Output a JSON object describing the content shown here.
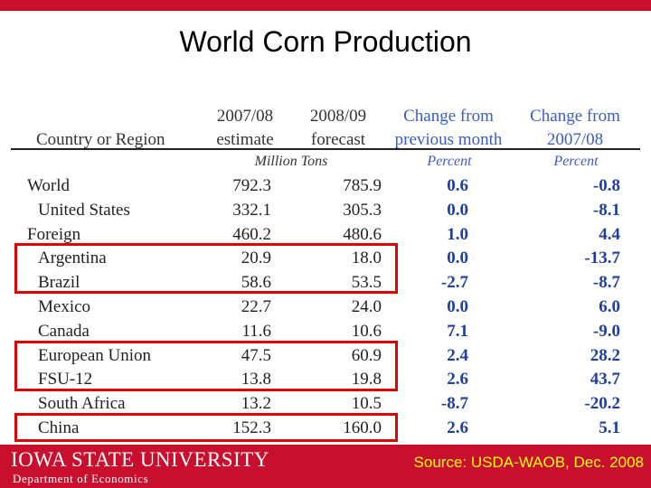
{
  "slide": {
    "title": "World Corn Production"
  },
  "table": {
    "headers": {
      "region": "Country or Region",
      "col1_line1": "2007/08",
      "col1_line2": "estimate",
      "col2_line1": "2008/09",
      "col2_line2": "forecast",
      "col3_line1": "Change from",
      "col3_line2": "previous month",
      "col4_line1": "Change from",
      "col4_line2": "2007/08"
    },
    "units": {
      "tons": "Million Tons",
      "pct1": "Percent",
      "pct2": "Percent"
    },
    "rows": [
      {
        "name": "World",
        "indent": false,
        "est": "792.3",
        "fc": "785.9",
        "chg_month": "0.6",
        "chg_year": "-0.8"
      },
      {
        "name": "United States",
        "indent": true,
        "est": "332.1",
        "fc": "305.3",
        "chg_month": "0.0",
        "chg_year": "-8.1"
      },
      {
        "name": "Foreign",
        "indent": false,
        "est": "460.2",
        "fc": "480.6",
        "chg_month": "1.0",
        "chg_year": "4.4"
      },
      {
        "name": "Argentina",
        "indent": true,
        "est": "20.9",
        "fc": "18.0",
        "chg_month": "0.0",
        "chg_year": "-13.7"
      },
      {
        "name": "Brazil",
        "indent": true,
        "est": "58.6",
        "fc": "53.5",
        "chg_month": "-2.7",
        "chg_year": "-8.7"
      },
      {
        "name": "Mexico",
        "indent": true,
        "est": "22.7",
        "fc": "24.0",
        "chg_month": "0.0",
        "chg_year": "6.0"
      },
      {
        "name": "Canada",
        "indent": true,
        "est": "11.6",
        "fc": "10.6",
        "chg_month": "7.1",
        "chg_year": "-9.0"
      },
      {
        "name": "European Union",
        "indent": true,
        "est": "47.5",
        "fc": "60.9",
        "chg_month": "2.4",
        "chg_year": "28.2"
      },
      {
        "name": "FSU-12",
        "indent": true,
        "est": "13.8",
        "fc": "19.8",
        "chg_month": "2.6",
        "chg_year": "43.7"
      },
      {
        "name": "South Africa",
        "indent": true,
        "est": "13.2",
        "fc": "10.5",
        "chg_month": "-8.7",
        "chg_year": "-20.2"
      },
      {
        "name": "China",
        "indent": true,
        "est": "152.3",
        "fc": "160.0",
        "chg_month": "2.6",
        "chg_year": "5.1"
      }
    ]
  },
  "footer": {
    "university": "IOWA STATE UNIVERSITY",
    "department": "Department of Economics",
    "source": "Source: USDA-WAOB, Dec. 2008"
  },
  "colors": {
    "brand_red": "#c8102e",
    "highlight_red": "#e00000",
    "header_blue": "#3b5cc4",
    "value_blue": "#1f3fa0",
    "source_yellow": "#ffff00"
  }
}
